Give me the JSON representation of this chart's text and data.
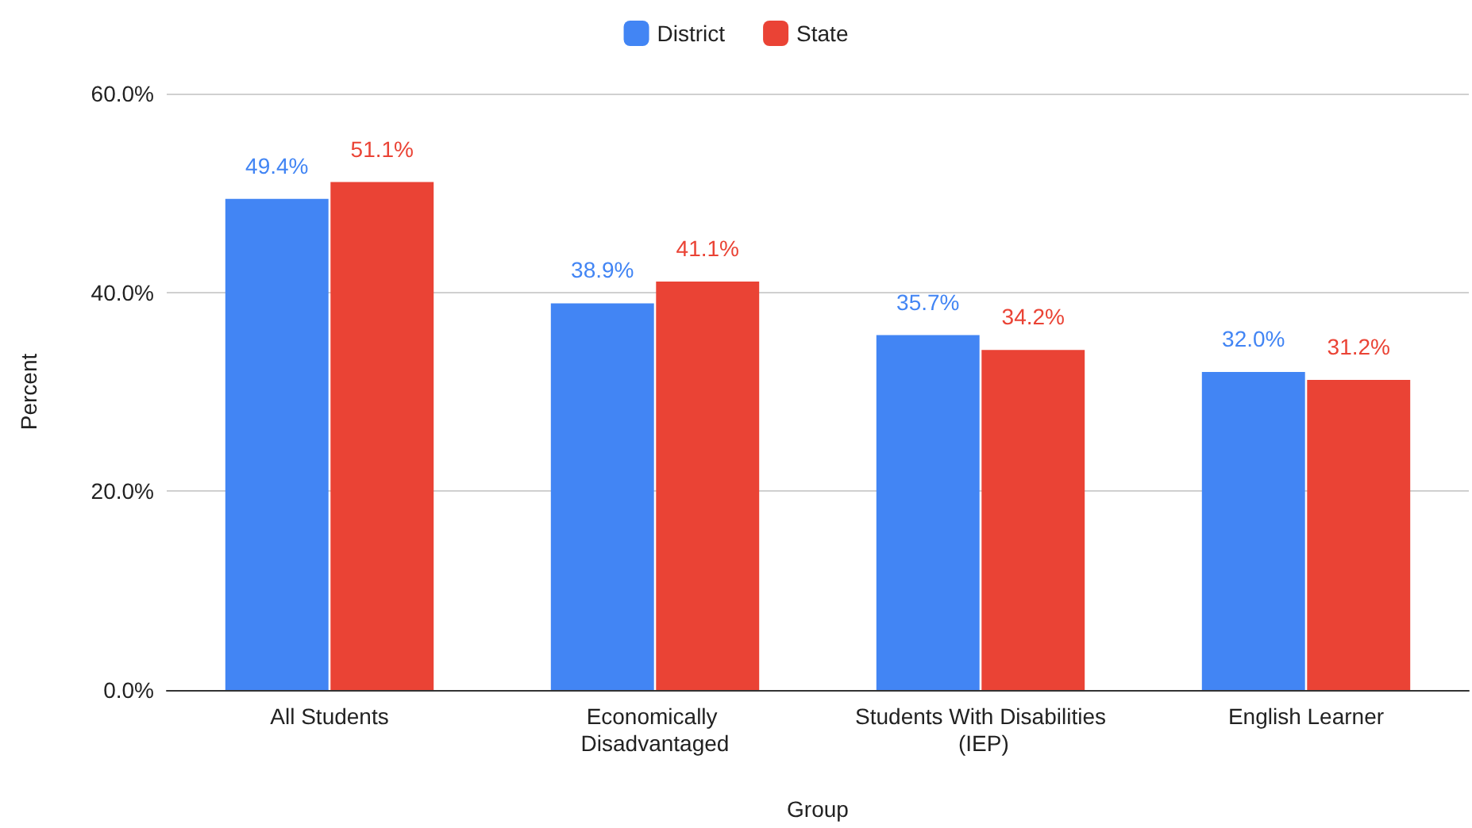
{
  "chart_data": {
    "type": "bar",
    "xlabel": "Group",
    "ylabel": "Percent",
    "categories": [
      "All Students",
      "Economically Disadvantaged",
      "Students With Disabilities (IEP)",
      "English Learner"
    ],
    "series": [
      {
        "name": "District",
        "color": "#4285f4",
        "values": [
          49.4,
          38.9,
          35.7,
          32.0
        ],
        "value_labels": [
          "49.4%",
          "38.9%",
          "35.7%",
          "32.0%"
        ]
      },
      {
        "name": "State",
        "color": "#ea4335",
        "values": [
          51.1,
          41.1,
          34.2,
          31.2
        ],
        "value_labels": [
          "51.1%",
          "41.1%",
          "34.2%",
          "31.2%"
        ]
      }
    ],
    "ylim": [
      0,
      60
    ],
    "yticks": [
      {
        "value": 0,
        "label": "0.0%"
      },
      {
        "value": 20,
        "label": "20.0%"
      },
      {
        "value": 40,
        "label": "40.0%"
      },
      {
        "value": 60,
        "label": "60.0%"
      }
    ],
    "grid": "y",
    "legend": "top"
  }
}
